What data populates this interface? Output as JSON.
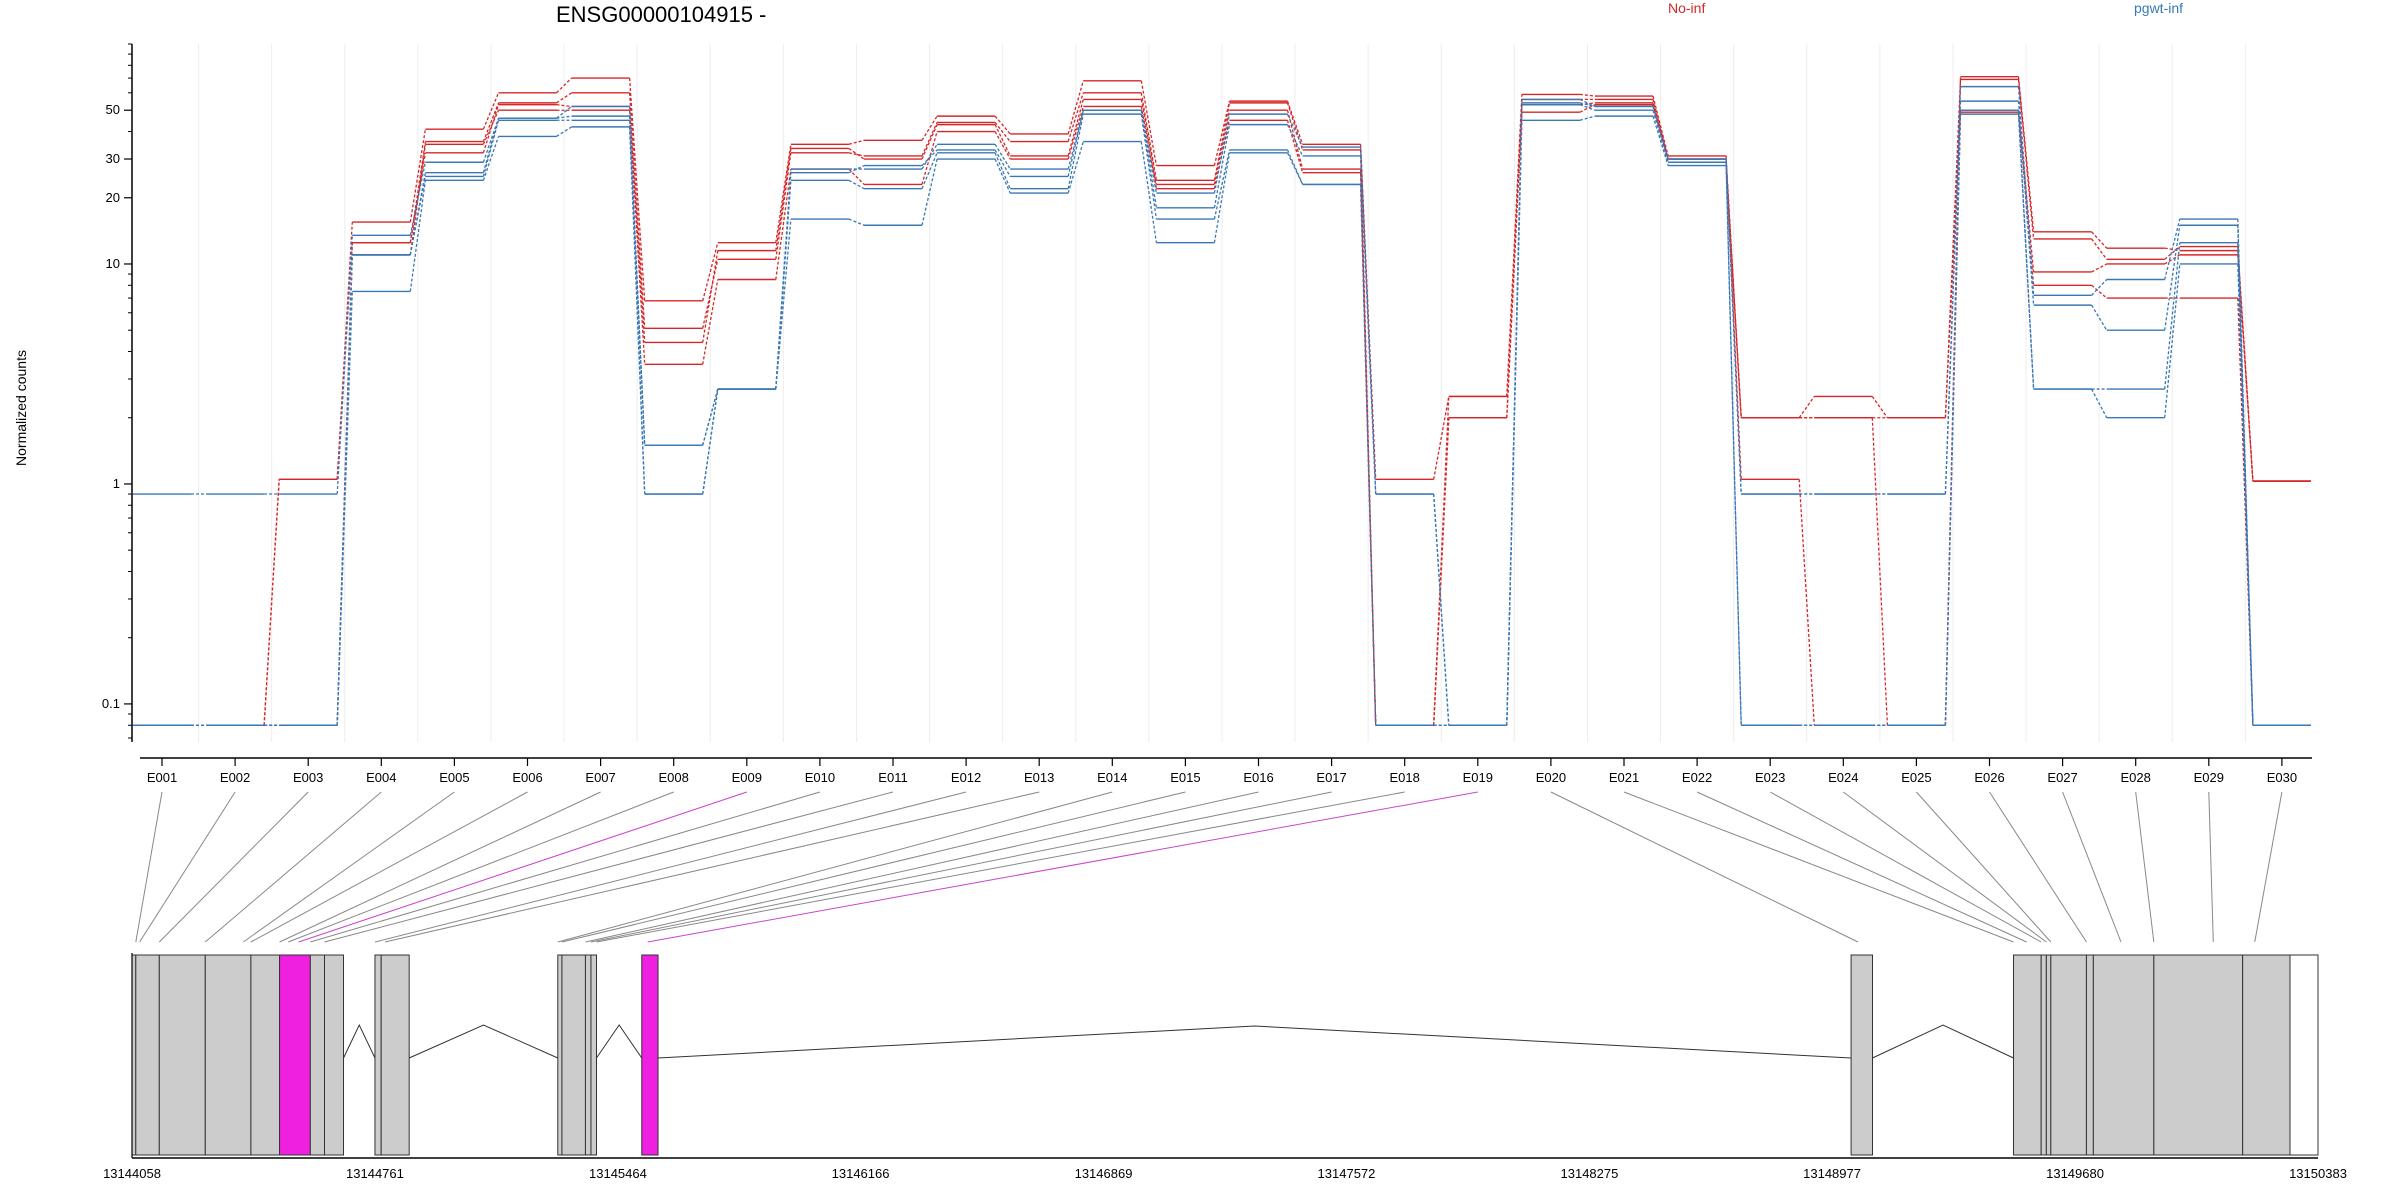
{
  "chart_data": {
    "type": "line",
    "title": "ENSG00000104915 -",
    "ylabel": "Normalized counts",
    "yscale": "log",
    "ylim": [
      0.07,
      100
    ],
    "yticks": [
      0.1,
      1,
      10,
      20,
      30,
      50
    ],
    "ytick_labels": [
      "0.1",
      "1",
      "10",
      "20",
      "30",
      "50"
    ],
    "legend_position": "top-right",
    "legend": [
      {
        "name": "No-inf",
        "color": "#d62728"
      },
      {
        "name": "pgwt-inf",
        "color": "#3a78b5"
      }
    ],
    "categories": [
      "E001",
      "E002",
      "E003",
      "E004",
      "E005",
      "E006",
      "E007",
      "E008",
      "E009",
      "E010",
      "E011",
      "E012",
      "E013",
      "E014",
      "E015",
      "E016",
      "E017",
      "E018",
      "E019",
      "E020",
      "E021",
      "E022",
      "E023",
      "E024",
      "E025",
      "E026",
      "E027",
      "E028",
      "E029",
      "E030"
    ],
    "series": [
      {
        "group": "No-inf",
        "color": "#d62728",
        "values": [
          0.08,
          0.08,
          1.05,
          15.5,
          41,
          60,
          70,
          6.8,
          12.5,
          35,
          36.5,
          47,
          39,
          68,
          28,
          55,
          35,
          1.05,
          2.5,
          59,
          58,
          31,
          1.05,
          0.08,
          0.08,
          71,
          14,
          11.8,
          11.5,
          1.03
        ]
      },
      {
        "group": "No-inf",
        "color": "#d62728",
        "values": [
          0.08,
          0.08,
          1.05,
          12.5,
          36,
          54,
          60,
          5.1,
          10.5,
          32,
          31,
          44,
          36,
          60,
          24,
          54,
          33,
          0.08,
          2.5,
          56,
          56,
          30,
          2,
          2.5,
          2,
          69,
          13,
          10.5,
          12,
          1.03
        ]
      },
      {
        "group": "No-inf",
        "color": "#d62728",
        "values": [
          0.08,
          0.08,
          0.08,
          12.5,
          32,
          53,
          52,
          4.4,
          11.5,
          33.5,
          30,
          43,
          31,
          56,
          23,
          50,
          27,
          0.08,
          2,
          53,
          54,
          30,
          2,
          2,
          2,
          50,
          9.2,
          10,
          11,
          1.03
        ]
      },
      {
        "group": "No-inf",
        "color": "#d62728",
        "values": [
          0.08,
          0.08,
          0.08,
          11,
          35,
          50,
          50,
          3.5,
          8.5,
          27,
          23,
          40,
          30,
          52,
          22,
          45,
          26,
          0.08,
          2,
          49,
          53,
          29,
          2,
          2,
          0.08,
          49,
          8,
          7,
          7,
          0.08
        ]
      },
      {
        "group": "pgwt-inf",
        "color": "#3a78b5",
        "values": [
          0.9,
          0.9,
          0.9,
          13.5,
          29,
          46,
          52,
          0.9,
          2.7,
          27,
          27,
          35,
          27,
          50,
          21,
          48,
          34,
          0.9,
          0.08,
          56,
          52,
          30,
          0.9,
          0.9,
          0.9,
          64,
          7.2,
          8.5,
          16,
          0.08
        ]
      },
      {
        "group": "pgwt-inf",
        "color": "#3a78b5",
        "values": [
          0.08,
          0.08,
          0.08,
          11,
          26,
          46,
          47,
          1.5,
          2.7,
          26,
          28,
          33,
          25,
          50,
          18,
          43,
          31,
          0.9,
          0.08,
          54,
          52,
          30,
          0.9,
          0.9,
          0.9,
          55,
          6.5,
          5,
          15,
          0.08
        ]
      },
      {
        "group": "pgwt-inf",
        "color": "#3a78b5",
        "values": [
          0.08,
          0.08,
          0.08,
          11,
          25,
          45,
          45,
          1.5,
          2.7,
          24,
          22,
          32,
          22,
          48,
          16,
          33,
          23,
          0.08,
          0.08,
          53,
          50,
          29,
          0.08,
          0.08,
          0.08,
          50,
          2.7,
          2.7,
          12.5,
          0.08
        ]
      },
      {
        "group": "pgwt-inf",
        "color": "#3a78b5",
        "values": [
          0.08,
          0.08,
          0.08,
          7.5,
          24,
          38,
          42,
          0.9,
          2.7,
          16,
          15,
          30,
          21,
          36,
          12.5,
          32,
          23,
          0.08,
          0.08,
          45,
          47,
          28,
          0.08,
          0.08,
          0.08,
          48,
          2.7,
          2,
          10,
          0.08
        ]
      }
    ],
    "gene_model": {
      "xlim": [
        13144058,
        13150383
      ],
      "xticks": [
        13144058,
        13144761,
        13145464,
        13146166,
        13146869,
        13147572,
        13148275,
        13148977,
        13149680,
        13150383
      ],
      "xtick_labels": [
        "13144058",
        "13144761",
        "13145464",
        "13146166",
        "13146869",
        "13147572",
        "13148275",
        "13148977",
        "13149680",
        "13150383"
      ],
      "gray_color": "#cccccc",
      "highlight_color": "#f020e0",
      "exons": [
        {
          "start": 13144058,
          "end": 13144069,
          "highlight": false
        },
        {
          "start": 13144069,
          "end": 13144137,
          "highlight": false
        },
        {
          "start": 13144137,
          "end": 13144270,
          "highlight": false
        },
        {
          "start": 13144270,
          "end": 13144402,
          "highlight": false
        },
        {
          "start": 13144402,
          "end": 13144485,
          "highlight": false
        },
        {
          "start": 13144485,
          "end": 13144574,
          "highlight": true
        },
        {
          "start": 13144574,
          "end": 13144615,
          "highlight": false
        },
        {
          "start": 13144615,
          "end": 13144670,
          "highlight": false
        },
        {
          "start": 13144761,
          "end": 13144779,
          "highlight": false
        },
        {
          "start": 13144779,
          "end": 13144860,
          "highlight": false
        },
        {
          "start": 13145290,
          "end": 13145302,
          "highlight": false
        },
        {
          "start": 13145302,
          "end": 13145370,
          "highlight": false
        },
        {
          "start": 13145370,
          "end": 13145386,
          "highlight": false
        },
        {
          "start": 13145386,
          "end": 13145402,
          "highlight": false
        },
        {
          "start": 13145533,
          "end": 13145580,
          "highlight": true
        },
        {
          "start": 13149032,
          "end": 13149094,
          "highlight": false
        },
        {
          "start": 13149502,
          "end": 13149582,
          "highlight": false
        },
        {
          "start": 13149582,
          "end": 13149597,
          "highlight": false
        },
        {
          "start": 13149597,
          "end": 13149610,
          "highlight": false
        },
        {
          "start": 13149610,
          "end": 13149713,
          "highlight": false
        },
        {
          "start": 13149713,
          "end": 13149733,
          "highlight": false
        },
        {
          "start": 13149733,
          "end": 13149908,
          "highlight": false
        },
        {
          "start": 13149908,
          "end": 13150165,
          "highlight": false
        },
        {
          "start": 13150165,
          "end": 13150302,
          "highlight": false
        },
        {
          "start": 13150302,
          "end": 13150383,
          "highlight": false,
          "empty": true
        }
      ],
      "introns": [
        [
          13144670,
          13144761
        ],
        [
          13144860,
          13145290
        ],
        [
          13145402,
          13145533
        ],
        [
          13145580,
          13149032
        ],
        [
          13149094,
          13149502
        ]
      ],
      "exon_links": [
        {
          "bin": "E001",
          "pos": 13144069,
          "highlight": false
        },
        {
          "bin": "E002",
          "pos": 13144080,
          "highlight": false
        },
        {
          "bin": "E003",
          "pos": 13144137,
          "highlight": false
        },
        {
          "bin": "E004",
          "pos": 13144270,
          "highlight": false
        },
        {
          "bin": "E005",
          "pos": 13144380,
          "highlight": false
        },
        {
          "bin": "E006",
          "pos": 13144402,
          "highlight": false
        },
        {
          "bin": "E007",
          "pos": 13144485,
          "highlight": false
        },
        {
          "bin": "E008",
          "pos": 13144510,
          "highlight": false
        },
        {
          "bin": "E009",
          "pos": 13144540,
          "highlight": true
        },
        {
          "bin": "E010",
          "pos": 13144574,
          "highlight": false
        },
        {
          "bin": "E011",
          "pos": 13144615,
          "highlight": false
        },
        {
          "bin": "E012",
          "pos": 13144761,
          "highlight": false
        },
        {
          "bin": "E013",
          "pos": 13144790,
          "highlight": false
        },
        {
          "bin": "E014",
          "pos": 13145290,
          "highlight": false
        },
        {
          "bin": "E015",
          "pos": 13145302,
          "highlight": false
        },
        {
          "bin": "E016",
          "pos": 13145370,
          "highlight": false
        },
        {
          "bin": "E017",
          "pos": 13145386,
          "highlight": false
        },
        {
          "bin": "E018",
          "pos": 13145402,
          "highlight": false
        },
        {
          "bin": "E019",
          "pos": 13145550,
          "highlight": true
        },
        {
          "bin": "E020",
          "pos": 13149052,
          "highlight": false
        },
        {
          "bin": "E021",
          "pos": 13149502,
          "highlight": false
        },
        {
          "bin": "E022",
          "pos": 13149540,
          "highlight": false
        },
        {
          "bin": "E023",
          "pos": 13149582,
          "highlight": false
        },
        {
          "bin": "E024",
          "pos": 13149597,
          "highlight": false
        },
        {
          "bin": "E025",
          "pos": 13149610,
          "highlight": false
        },
        {
          "bin": "E026",
          "pos": 13149713,
          "highlight": false
        },
        {
          "bin": "E027",
          "pos": 13149813,
          "highlight": false
        },
        {
          "bin": "E028",
          "pos": 13149908,
          "highlight": false
        },
        {
          "bin": "E029",
          "pos": 13150080,
          "highlight": false
        },
        {
          "bin": "E030",
          "pos": 13150200,
          "highlight": false
        }
      ]
    }
  }
}
